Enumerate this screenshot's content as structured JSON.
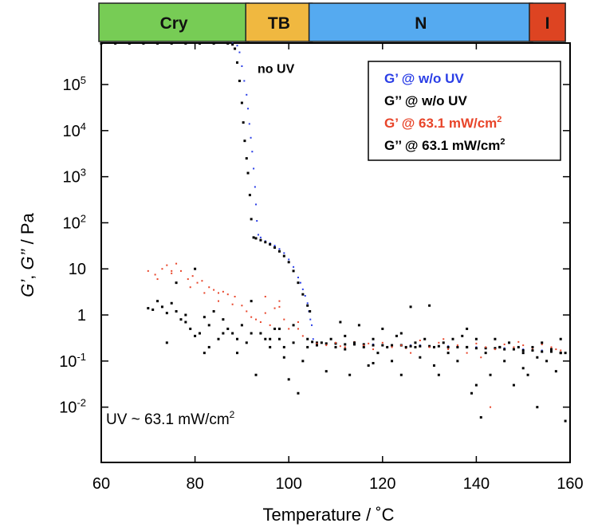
{
  "chart_data": {
    "type": "scatter",
    "xlabel": "Temperature / ˚C",
    "ylabel_parts": [
      "G’",
      ", ",
      "G’’",
      " / Pa"
    ],
    "xlim": [
      60,
      160
    ],
    "ylim_log10": [
      -3.2,
      5.9
    ],
    "log_y": true,
    "x_ticks": [
      60,
      80,
      100,
      120,
      140,
      160
    ],
    "y_ticks": [
      {
        "value": 0.01,
        "base": "10",
        "exp": "-2"
      },
      {
        "value": 0.1,
        "base": "10",
        "exp": "-1"
      },
      {
        "value": 1,
        "base": "1",
        "exp": ""
      },
      {
        "value": 10,
        "base": "10",
        "exp": ""
      },
      {
        "value": 100,
        "base": "10",
        "exp": "2"
      },
      {
        "value": 1000,
        "base": "10",
        "exp": "3"
      },
      {
        "value": 10000,
        "base": "10",
        "exp": "4"
      },
      {
        "value": 100000,
        "base": "10",
        "exp": "5"
      }
    ],
    "phases": [
      {
        "label": "Cry",
        "x_start": 60,
        "x_end": 91.5,
        "color": "#77cc55"
      },
      {
        "label": "TB",
        "x_start": 91.5,
        "x_end": 105,
        "color": "#f0b840"
      },
      {
        "label": "N",
        "x_start": 105,
        "x_end": 152,
        "color": "#55aaf0"
      },
      {
        "label": "I",
        "x_start": 152,
        "x_end": 159,
        "color": "#dd4422"
      }
    ],
    "legend": {
      "position": "top-right",
      "entries": [
        {
          "label": "G’ @ w/o UV",
          "color": "#2a3ee6",
          "unit_exp": ""
        },
        {
          "label": "G’’ @ w/o UV",
          "color": "#000000",
          "unit_exp": ""
        },
        {
          "label": "G’ @ 63.1 mW/cm",
          "color": "#e8452a",
          "unit_exp": "2"
        },
        {
          "label": "G’’ @ 63.1 mW/cm",
          "color": "#000000",
          "unit_exp": "2"
        }
      ]
    },
    "annotations": [
      {
        "text": "no UV",
        "x": 93,
        "y": 200000
      },
      {
        "text": "UV ~ 63.1 mW/cm",
        "exp": "2",
        "x": 61,
        "y": 0.012
      }
    ],
    "series": [
      {
        "name": "G’ @ w/o UV",
        "color": "#2a3ee6",
        "marker_size": 2,
        "x": [
          60,
          63,
          66,
          69,
          72,
          75,
          78,
          81,
          84,
          87,
          88,
          89,
          89.5,
          90,
          90.5,
          91,
          91.3,
          91.6,
          91.9,
          92.2,
          92.5,
          92.8,
          93,
          93.2,
          93.5,
          94,
          95,
          96,
          97,
          98,
          99,
          100,
          101,
          102,
          102.5,
          103,
          103.5,
          104,
          104.3,
          104.6,
          104.9,
          105.2,
          106,
          108,
          110,
          112,
          114,
          116,
          118,
          120,
          122,
          124,
          126,
          128,
          130,
          132,
          134,
          136,
          138,
          140,
          142,
          144,
          146,
          148,
          150,
          152,
          154,
          156,
          158,
          159
        ],
        "y": [
          800000,
          800000,
          800000,
          800000,
          800000,
          800000,
          810000,
          810000,
          810000,
          800000,
          780000,
          700000,
          500000,
          250000,
          120000,
          60000,
          30000,
          14000,
          7000,
          3500,
          1500,
          600,
          250,
          110,
          55,
          48,
          40,
          36,
          32,
          27,
          22,
          16,
          11,
          6.5,
          5,
          3.6,
          2.6,
          1.8,
          1.2,
          0.8,
          0.6,
          0.3,
          0.24,
          0.24,
          0.24,
          0.23,
          0.23,
          0.23,
          0.23,
          0.22,
          0.22,
          0.22,
          0.22,
          0.22,
          0.21,
          0.21,
          0.21,
          0.2,
          0.2,
          0.2,
          0.19,
          0.19,
          0.19,
          0.18,
          0.18,
          0.17,
          0.17,
          0.16,
          0.15,
          0.15
        ]
      },
      {
        "name": "G’’ @ w/o UV",
        "color": "#000000",
        "marker_size": 3,
        "x": [
          60,
          63,
          66,
          69,
          72,
          75,
          78,
          81,
          84,
          87,
          88,
          88.5,
          89,
          89.5,
          90,
          90.3,
          90.6,
          91,
          91.3,
          91.7,
          92,
          92.5,
          93,
          94,
          95,
          96,
          97,
          98,
          99,
          100,
          101,
          102,
          103,
          104,
          104.5,
          105,
          106,
          108,
          110,
          112,
          114,
          116,
          118,
          120,
          122,
          124,
          126,
          128,
          130,
          132,
          134,
          136,
          138,
          140,
          142,
          144,
          146,
          148,
          150,
          152,
          154,
          156,
          158,
          159
        ],
        "y": [
          780000,
          780000,
          780000,
          780000,
          780000,
          780000,
          780000,
          780000,
          780000,
          780000,
          740000,
          600000,
          300000,
          120000,
          40000,
          15000,
          6000,
          2500,
          1200,
          400,
          120,
          48,
          46,
          42,
          38,
          34,
          29,
          24,
          19,
          14,
          9,
          5,
          2.8,
          1.6,
          1.2,
          0.26,
          0.25,
          0.24,
          0.24,
          0.23,
          0.23,
          0.23,
          0.22,
          0.22,
          0.22,
          0.22,
          0.21,
          0.21,
          0.21,
          0.21,
          0.2,
          0.2,
          0.2,
          0.19,
          0.19,
          0.19,
          0.18,
          0.18,
          0.17,
          0.17,
          0.16,
          0.16,
          0.15,
          0.15
        ]
      },
      {
        "name": "G’ @ 63.1 mW/cm²",
        "color": "#e8452a",
        "marker_size": 2,
        "x": [
          70,
          71.5,
          73,
          74,
          75,
          76,
          77,
          78.5,
          79.5,
          80.5,
          81.5,
          83,
          84,
          85,
          86,
          87,
          88.5,
          90,
          91,
          92,
          93,
          94,
          95,
          96,
          97,
          98,
          99,
          100,
          101,
          102,
          103,
          104,
          106,
          108,
          110,
          112,
          114,
          116,
          118,
          120,
          122,
          124,
          126,
          128,
          130,
          132,
          134,
          136,
          138,
          140,
          142,
          143,
          144,
          146,
          148,
          150,
          152,
          154,
          156,
          158,
          72,
          75,
          79,
          82,
          85,
          88,
          95,
          98,
          102,
          111,
          117,
          125,
          133,
          141,
          149,
          157
        ],
        "y": [
          9,
          7.5,
          10,
          12,
          8,
          13,
          9,
          6,
          7,
          5,
          5.5,
          4,
          3.5,
          3,
          3.2,
          2.8,
          2.5,
          1.6,
          1.2,
          0.9,
          0.8,
          0.7,
          1.1,
          0.6,
          1.4,
          2,
          0.8,
          0.5,
          0.6,
          0.5,
          0.35,
          0.3,
          0.24,
          0.22,
          0.25,
          0.2,
          0.26,
          0.22,
          0.18,
          0.25,
          0.2,
          0.22,
          0.15,
          0.28,
          0.2,
          0.25,
          0.18,
          0.22,
          0.15,
          0.24,
          0.2,
          0.01,
          0.18,
          0.23,
          0.2,
          0.22,
          0.19,
          0.23,
          0.2,
          0.17,
          6,
          9,
          4,
          3,
          2,
          1.7,
          2.5,
          1.5,
          0.7,
          0.21,
          0.24,
          0.19,
          0.3,
          0.12,
          0.26,
          0.18
        ]
      },
      {
        "name": "G’’ @ 63.1 mW/cm²",
        "color": "#000000",
        "marker_size": 3,
        "x": [
          70,
          71,
          72,
          73,
          74,
          75,
          76,
          77,
          78,
          79,
          80,
          81,
          82,
          83,
          84,
          85,
          86,
          87,
          88,
          89,
          90,
          91,
          92,
          93,
          94,
          95,
          96,
          97,
          98,
          99,
          100,
          101,
          102,
          103,
          104,
          106,
          107,
          108,
          109,
          110,
          111,
          112,
          113,
          114,
          115,
          116,
          117,
          118,
          119,
          120,
          121,
          122,
          123,
          124,
          125,
          126,
          127,
          128,
          129,
          130,
          131,
          132,
          133,
          134,
          135,
          136,
          137,
          138,
          139,
          140,
          141,
          142,
          143,
          144,
          145,
          146,
          147,
          148,
          149,
          150,
          151,
          152,
          153,
          154,
          155,
          156,
          157,
          158,
          159,
          74,
          78,
          80,
          83,
          86,
          89,
          96,
          99,
          101,
          104,
          112,
          118,
          124,
          127,
          131,
          138,
          140,
          145,
          150,
          153,
          158,
          92,
          98,
          76,
          82
        ],
        "y": [
          1.4,
          1.3,
          2,
          1.5,
          1.1,
          1.8,
          1.2,
          0.8,
          1,
          0.5,
          10,
          0.4,
          0.9,
          0.6,
          1.2,
          0.3,
          0.8,
          0.5,
          0.4,
          0.3,
          0.6,
          0.25,
          0.4,
          0.05,
          0.4,
          0.3,
          0.2,
          0.5,
          0.3,
          0.2,
          0.04,
          0.25,
          0.02,
          0.1,
          0.3,
          0.22,
          0.25,
          0.06,
          0.3,
          0.2,
          0.7,
          0.18,
          0.05,
          0.25,
          0.6,
          0.2,
          0.08,
          0.3,
          0.15,
          0.5,
          0.2,
          0.1,
          0.35,
          0.05,
          0.2,
          1.5,
          0.25,
          0.12,
          0.3,
          1.6,
          0.2,
          0.05,
          0.25,
          0.15,
          0.3,
          0.1,
          0.35,
          0.2,
          0.02,
          0.3,
          0.006,
          0.15,
          0.05,
          0.3,
          0.2,
          0.1,
          0.25,
          0.03,
          0.2,
          0.15,
          0.05,
          0.2,
          0.12,
          0.25,
          0.1,
          0.18,
          0.06,
          0.15,
          0.005,
          0.25,
          0.7,
          0.35,
          0.2,
          0.4,
          0.15,
          0.3,
          0.12,
          0.6,
          0.2,
          0.35,
          0.09,
          0.4,
          0.2,
          0.08,
          0.5,
          0.03,
          0.2,
          0.07,
          0.01,
          0.3,
          2,
          0.5,
          5,
          0.15
        ]
      }
    ]
  }
}
